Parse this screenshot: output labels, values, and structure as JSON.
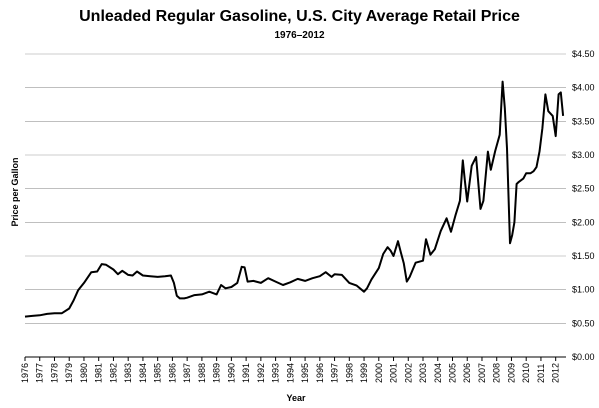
{
  "chart_data": {
    "type": "line",
    "title": "Unleaded Regular Gasoline, U.S. City Average Retail Price",
    "subtitle": "1976–2012",
    "xlabel": "Year",
    "ylabel": "Price per Gallon",
    "xlim": [
      1976,
      2012.7
    ],
    "ylim": [
      0,
      4.5
    ],
    "y_axis_position": "right",
    "grid": "horizontal",
    "x_ticks": [
      "1976",
      "1977",
      "1978",
      "1979",
      "1980",
      "1981",
      "1982",
      "1983",
      "1984",
      "1985",
      "1986",
      "1987",
      "1988",
      "1989",
      "1990",
      "1991",
      "1992",
      "1993",
      "1994",
      "1995",
      "1996",
      "1997",
      "1998",
      "1999",
      "2000",
      "2001",
      "2002",
      "2003",
      "2004",
      "2005",
      "2006",
      "2007",
      "2008",
      "2009",
      "2010",
      "2011",
      "2012"
    ],
    "y_ticks": [
      "$0.00",
      "$0.50",
      "$1.00",
      "$1.50",
      "$2.00",
      "$2.50",
      "$3.00",
      "$3.50",
      "$4.00",
      "$4.50"
    ],
    "color": "#000000",
    "series": [
      {
        "x": [
          1976.0,
          1976.5,
          1977.0,
          1977.5,
          1978.0,
          1978.5,
          1979.0,
          1979.3,
          1979.6,
          1980.0,
          1980.5,
          1980.9,
          1981.2,
          1981.5,
          1982.0,
          1982.3,
          1982.6,
          1983.0,
          1983.3,
          1983.6,
          1984.0,
          1984.5,
          1985.0,
          1985.5,
          1985.9,
          1986.1,
          1986.3,
          1986.5,
          1986.8,
          1987.0,
          1987.5,
          1988.0,
          1988.5,
          1989.0,
          1989.3,
          1989.6,
          1990.0,
          1990.4,
          1990.7,
          1990.9,
          1991.1,
          1991.5,
          1992.0,
          1992.5,
          1993.0,
          1993.5,
          1994.0,
          1994.5,
          1995.0,
          1995.5,
          1996.0,
          1996.4,
          1996.8,
          1997.0,
          1997.5,
          1998.0,
          1998.5,
          1999.0,
          1999.2,
          1999.5,
          2000.0,
          2000.3,
          2000.6,
          2000.8,
          2001.0,
          2001.3,
          2001.5,
          2001.7,
          2001.9,
          2002.1,
          2002.5,
          2003.0,
          2003.2,
          2003.5,
          2003.8,
          2004.2,
          2004.6,
          2004.9,
          2005.2,
          2005.5,
          2005.7,
          2005.85,
          2006.0,
          2006.3,
          2006.6,
          2006.9,
          2007.1,
          2007.4,
          2007.6,
          2007.9,
          2008.2,
          2008.4,
          2008.55,
          2008.7,
          2008.9,
          2009.05,
          2009.2,
          2009.35,
          2009.5,
          2009.8,
          2010.0,
          2010.3,
          2010.5,
          2010.7,
          2010.9,
          2011.1,
          2011.3,
          2011.5,
          2011.8,
          2012.0,
          2012.2,
          2012.35,
          2012.5
        ],
        "y": [
          0.6,
          0.61,
          0.62,
          0.64,
          0.65,
          0.65,
          0.72,
          0.84,
          0.99,
          1.1,
          1.26,
          1.27,
          1.38,
          1.37,
          1.3,
          1.23,
          1.28,
          1.22,
          1.21,
          1.27,
          1.21,
          1.2,
          1.19,
          1.2,
          1.21,
          1.1,
          0.91,
          0.87,
          0.87,
          0.88,
          0.92,
          0.93,
          0.97,
          0.93,
          1.07,
          1.02,
          1.04,
          1.1,
          1.34,
          1.33,
          1.12,
          1.13,
          1.1,
          1.17,
          1.12,
          1.07,
          1.11,
          1.16,
          1.13,
          1.17,
          1.2,
          1.26,
          1.19,
          1.23,
          1.22,
          1.1,
          1.06,
          0.97,
          1.02,
          1.15,
          1.32,
          1.53,
          1.63,
          1.58,
          1.5,
          1.72,
          1.55,
          1.39,
          1.12,
          1.19,
          1.4,
          1.43,
          1.75,
          1.52,
          1.6,
          1.87,
          2.06,
          1.86,
          2.1,
          2.32,
          2.92,
          2.6,
          2.31,
          2.84,
          2.97,
          2.2,
          2.32,
          3.05,
          2.78,
          3.06,
          3.3,
          4.09,
          3.7,
          3.1,
          1.69,
          1.81,
          2.0,
          2.57,
          2.6,
          2.65,
          2.73,
          2.73,
          2.76,
          2.82,
          3.05,
          3.4,
          3.9,
          3.65,
          3.58,
          3.28,
          3.9,
          3.93,
          3.58
        ]
      }
    ]
  }
}
